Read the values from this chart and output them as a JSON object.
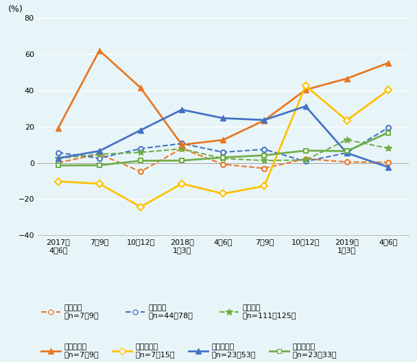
{
  "x_labels_line1": [
    "2017年",
    "",
    "",
    "2018年",
    "",
    "",
    "",
    "2019年",
    ""
  ],
  "x_labels_line2": [
    "4〜6月",
    "7〜9月",
    "10〜12月",
    "1〜3月",
    "4〜6月",
    "7〜9月",
    "10〜12月",
    "1〜3月",
    "4〜6月"
  ],
  "korea_large": [
    0.1,
    4.9,
    -4.8,
    8.0,
    -0.8,
    -3.0,
    2.3,
    0.5,
    0.4
  ],
  "us_large": [
    5.7,
    2.6,
    7.9,
    10.7,
    5.9,
    7.5,
    0.8,
    5.6,
    19.4
  ],
  "japan_large": [
    2.5,
    4.8,
    5.8,
    7.8,
    2.4,
    1.3,
    1.6,
    12.8,
    8.1
  ],
  "korea_small": [
    19.2,
    62.1,
    41.5,
    10.0,
    12.7,
    23.5,
    40.4,
    46.6,
    55.2
  ],
  "china_small": [
    -10.2,
    -11.5,
    -24.3,
    -11.5,
    -17.0,
    -12.8,
    42.6,
    23.5,
    40.2
  ],
  "us_small": [
    2.6,
    6.6,
    18.1,
    29.4,
    24.7,
    23.7,
    31.3,
    5.5,
    -2.3
  ],
  "japan_small": [
    -1.4,
    -1.3,
    1.2,
    1.3,
    3.0,
    4.2,
    6.8,
    6.5,
    16.7
  ],
  "korea_large_color": "#E87722",
  "us_large_color": "#4472C4",
  "japan_large_color": "#70AD47",
  "korea_small_color": "#E87722",
  "china_small_color": "#FFC000",
  "us_small_color": "#4472C4",
  "japan_small_color": "#70AD47",
  "bg_color": "#E8F5F8",
  "ylabel": "(%)",
  "ylim_min": -40,
  "ylim_max": 80,
  "yticks": [
    -40,
    -20,
    0,
    20,
    40,
    60,
    80
  ],
  "legend_korea_large": "韓国・大",
  "legend_korea_large_sub": "（n=7〜9）",
  "legend_us_large": "米国・大",
  "legend_us_large_sub": "（n=44〜78）",
  "legend_japan_large": "日本・大",
  "legend_japan_large_sub": "（n=111〜125）",
  "legend_korea_small": "韓国・中小",
  "legend_korea_small_sub": "（n=7〜9）",
  "legend_china_small": "中国・中小",
  "legend_china_small_sub": "（n=7〜15）",
  "legend_us_small": "米国・中小",
  "legend_us_small_sub": "（n=23〜53）",
  "legend_japan_small": "日本・中小",
  "legend_japan_small_sub": "（n=23〜33）"
}
